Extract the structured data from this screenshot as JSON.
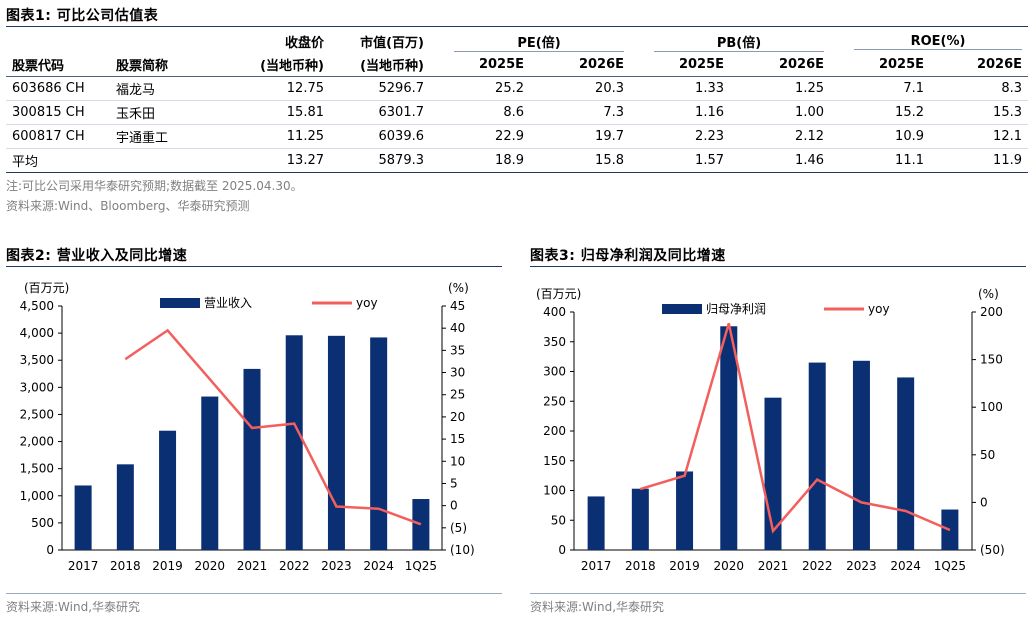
{
  "table1": {
    "title": "图表1:  可比公司估值表",
    "headers": {
      "code": "股票代码",
      "name": "股票简称",
      "close_top": "收盘价",
      "close_bottom": "(当地币种)",
      "mcap_top": "市值(百万)",
      "mcap_bottom": "(当地币种)",
      "pe": "PE(倍)",
      "pb": "PB(倍)",
      "roe": "ROE(%)",
      "y1": "2025E",
      "y2": "2026E"
    },
    "rows": [
      {
        "code": "603686 CH",
        "name": "福龙马",
        "close": "12.75",
        "mcap": "5296.7",
        "pe1": "25.2",
        "pe2": "20.3",
        "pb1": "1.33",
        "pb2": "1.25",
        "roe1": "7.1",
        "roe2": "8.3"
      },
      {
        "code": "300815 CH",
        "name": "玉禾田",
        "close": "15.81",
        "mcap": "6301.7",
        "pe1": "8.6",
        "pe2": "7.3",
        "pb1": "1.16",
        "pb2": "1.00",
        "roe1": "15.2",
        "roe2": "15.3"
      },
      {
        "code": "600817 CH",
        "name": "宇通重工",
        "close": "11.25",
        "mcap": "6039.6",
        "pe1": "22.9",
        "pe2": "19.7",
        "pb1": "2.23",
        "pb2": "2.12",
        "roe1": "10.9",
        "roe2": "12.1"
      },
      {
        "code": "平均",
        "name": "",
        "close": "13.27",
        "mcap": "5879.3",
        "pe1": "18.9",
        "pe2": "15.8",
        "pb1": "1.57",
        "pb2": "1.46",
        "roe1": "11.1",
        "roe2": "11.9"
      }
    ],
    "note": "注:可比公司采用华泰研究预期;数据截至 2025.04.30。",
    "source": "资料来源:Wind、Bloomberg、华泰研究预测"
  },
  "chart_data": [
    {
      "type": "bar",
      "title": "图表2:  营业收入及同比增速",
      "ylabel": "(百万元)",
      "y2label": "(%)",
      "categories": [
        "2017",
        "2018",
        "2019",
        "2020",
        "2021",
        "2022",
        "2023",
        "2024",
        "1Q25"
      ],
      "series": [
        {
          "name": "营业收入",
          "kind": "bar",
          "axis": "left",
          "values": [
            1190,
            1580,
            2200,
            2830,
            3340,
            3960,
            3950,
            3920,
            940
          ]
        },
        {
          "name": "yoy",
          "kind": "line",
          "axis": "right",
          "values": [
            null,
            33,
            39.5,
            null,
            17.5,
            18.5,
            -0.2,
            -0.7,
            -4.2
          ]
        }
      ],
      "ylim": [
        0,
        4500
      ],
      "yticks": [
        "0",
        "500",
        "1,000",
        "1,500",
        "2,000",
        "2,500",
        "3,000",
        "3,500",
        "4,000",
        "4,500"
      ],
      "y2lim": [
        -10,
        45
      ],
      "y2ticks": [
        "(10)",
        "(5)",
        "0",
        "5",
        "10",
        "15",
        "20",
        "25",
        "30",
        "35",
        "40",
        "45"
      ],
      "legend": "top",
      "source": "资料来源:Wind,华泰研究"
    },
    {
      "type": "bar",
      "title": "图表3:  归母净利润及同比增速",
      "ylabel": "(百万元)",
      "y2label": "(%)",
      "categories": [
        "2017",
        "2018",
        "2019",
        "2020",
        "2021",
        "2022",
        "2023",
        "2024",
        "1Q25"
      ],
      "series": [
        {
          "name": "归母净利润",
          "kind": "bar",
          "axis": "left",
          "values": [
            90,
            103,
            132,
            376,
            256,
            315,
            318,
            290,
            68
          ]
        },
        {
          "name": "yoy",
          "kind": "line",
          "axis": "right",
          "values": [
            null,
            14,
            28,
            188,
            -30,
            24,
            0,
            -9,
            -29
          ]
        }
      ],
      "ylim": [
        0,
        400
      ],
      "yticks": [
        "0",
        "50",
        "100",
        "150",
        "200",
        "250",
        "300",
        "350",
        "400"
      ],
      "y2lim": [
        -50,
        200
      ],
      "y2ticks": [
        "(50)",
        "0",
        "50",
        "100",
        "150",
        "200"
      ],
      "legend": "top",
      "source": "资料来源:Wind,华泰研究"
    }
  ],
  "colors": {
    "bar": "#0b2f73",
    "line": "#f25f5c",
    "rule": "#1f3864",
    "note": "#808080"
  }
}
